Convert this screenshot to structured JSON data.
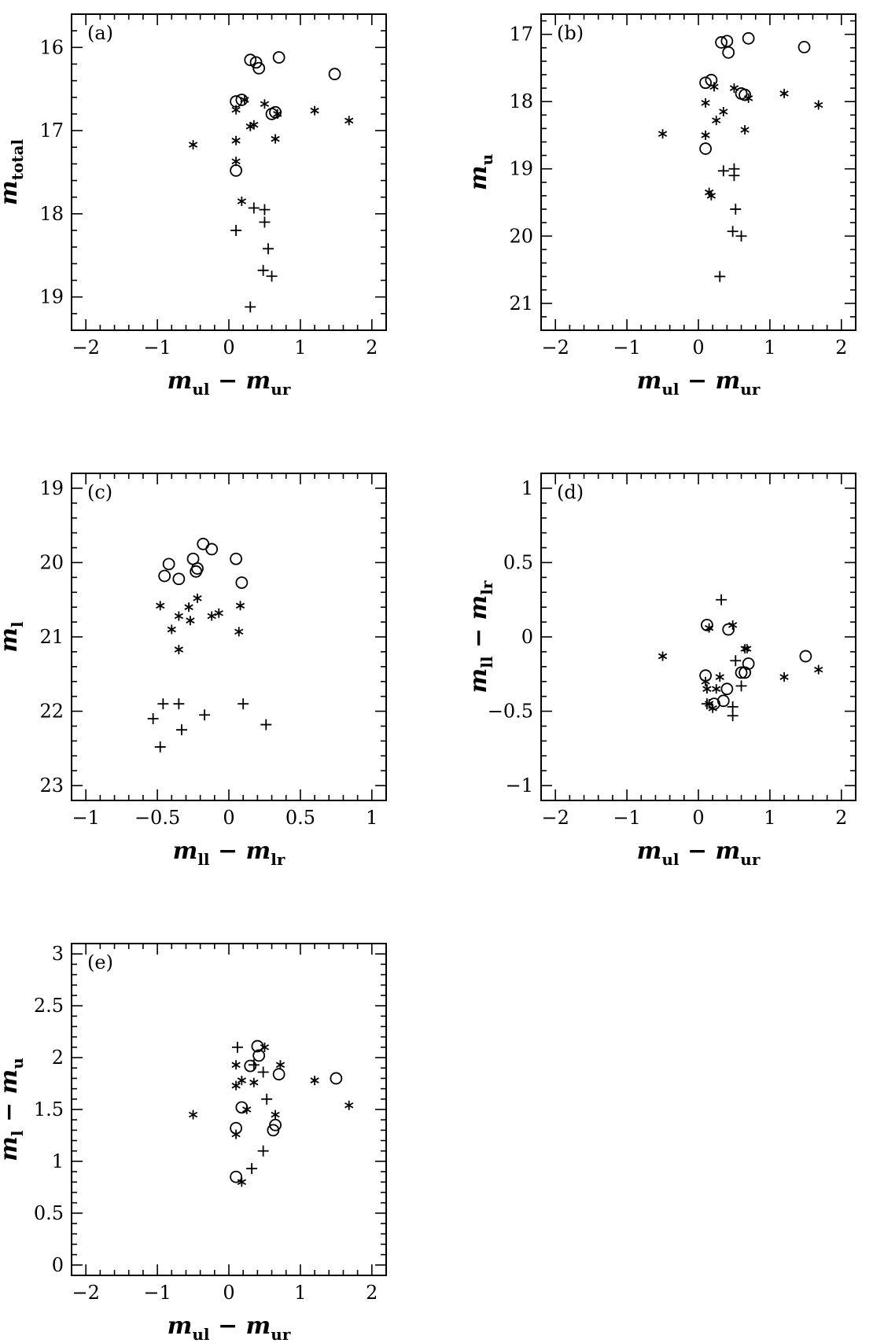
{
  "chart_data": [
    {
      "type": "scatter",
      "panel_label": "(a)",
      "xlabel": {
        "main": "m",
        "sub1": "ul",
        "op": "−",
        "main2": "m",
        "sub2": "ur"
      },
      "ylabel": {
        "main": "m",
        "sub1": "total"
      },
      "xlim": [
        -2.2,
        2.2
      ],
      "ylim": [
        19.4,
        15.6
      ],
      "xticks": [
        -2,
        -1,
        0,
        1,
        2
      ],
      "xtick_labels": [
        "−2",
        "−1",
        "0",
        "1",
        "2"
      ],
      "yticks": [
        16,
        17,
        18,
        19
      ],
      "ytick_labels": [
        "16",
        "17",
        "18",
        "19"
      ],
      "series": [
        {
          "marker": "circle",
          "points": [
            [
              0.3,
              16.15
            ],
            [
              0.38,
              16.18
            ],
            [
              0.42,
              16.25
            ],
            [
              0.7,
              16.12
            ],
            [
              1.48,
              16.32
            ],
            [
              0.1,
              16.65
            ],
            [
              0.18,
              16.63
            ],
            [
              0.6,
              16.8
            ],
            [
              0.65,
              16.78
            ],
            [
              0.1,
              17.48
            ]
          ]
        },
        {
          "marker": "star",
          "points": [
            [
              -0.5,
              17.17
            ],
            [
              0.1,
              16.75
            ],
            [
              0.22,
              16.63
            ],
            [
              0.3,
              16.95
            ],
            [
              0.35,
              16.93
            ],
            [
              0.5,
              16.68
            ],
            [
              0.68,
              16.8
            ],
            [
              1.2,
              16.76
            ],
            [
              1.68,
              16.88
            ],
            [
              0.1,
              17.12
            ],
            [
              0.1,
              17.37
            ],
            [
              0.65,
              17.1
            ],
            [
              0.18,
              17.85
            ]
          ]
        },
        {
          "marker": "plus",
          "points": [
            [
              0.35,
              17.93
            ],
            [
              0.5,
              17.95
            ],
            [
              0.5,
              18.1
            ],
            [
              0.1,
              18.2
            ],
            [
              0.55,
              18.42
            ],
            [
              0.48,
              18.68
            ],
            [
              0.6,
              18.75
            ],
            [
              0.3,
              19.12
            ]
          ]
        }
      ]
    },
    {
      "type": "scatter",
      "panel_label": "(b)",
      "xlabel": {
        "main": "m",
        "sub1": "ul",
        "op": "−",
        "main2": "m",
        "sub2": "ur"
      },
      "ylabel": {
        "main": "m",
        "sub1": "u"
      },
      "xlim": [
        -2.2,
        2.2
      ],
      "ylim": [
        21.4,
        16.7
      ],
      "xticks": [
        -2,
        -1,
        0,
        1,
        2
      ],
      "xtick_labels": [
        "−2",
        "−1",
        "0",
        "1",
        "2"
      ],
      "yticks": [
        17,
        18,
        19,
        20,
        21
      ],
      "ytick_labels": [
        "17",
        "18",
        "19",
        "20",
        "21"
      ],
      "series": [
        {
          "marker": "circle",
          "points": [
            [
              0.32,
              17.12
            ],
            [
              0.4,
              17.1
            ],
            [
              0.42,
              17.27
            ],
            [
              0.7,
              17.06
            ],
            [
              1.48,
              17.19
            ],
            [
              0.1,
              17.72
            ],
            [
              0.18,
              17.68
            ],
            [
              0.6,
              17.88
            ],
            [
              0.65,
              17.9
            ],
            [
              0.1,
              18.7
            ]
          ]
        },
        {
          "marker": "star",
          "points": [
            [
              -0.5,
              18.48
            ],
            [
              0.1,
              18.02
            ],
            [
              0.22,
              17.78
            ],
            [
              0.25,
              18.28
            ],
            [
              0.35,
              18.15
            ],
            [
              0.5,
              17.8
            ],
            [
              0.7,
              17.95
            ],
            [
              1.2,
              17.88
            ],
            [
              1.68,
              18.05
            ],
            [
              0.1,
              18.5
            ],
            [
              0.15,
              19.35
            ],
            [
              0.18,
              19.4
            ],
            [
              0.65,
              18.42
            ]
          ]
        },
        {
          "marker": "plus",
          "points": [
            [
              0.35,
              19.03
            ],
            [
              0.5,
              19.0
            ],
            [
              0.5,
              19.1
            ],
            [
              0.52,
              19.6
            ],
            [
              0.48,
              19.93
            ],
            [
              0.6,
              20.0
            ],
            [
              0.3,
              20.6
            ]
          ]
        }
      ]
    },
    {
      "type": "scatter",
      "panel_label": "(c)",
      "xlabel": {
        "main": "m",
        "sub1": "ll",
        "op": "−",
        "main2": "m",
        "sub2": "lr"
      },
      "ylabel": {
        "main": "m",
        "sub1": "l"
      },
      "xlim": [
        -1.1,
        1.1
      ],
      "ylim": [
        23.2,
        18.8
      ],
      "xticks": [
        -1,
        -0.5,
        0,
        0.5,
        1
      ],
      "xtick_labels": [
        "−1",
        "−0.5",
        "0",
        "0.5",
        "1"
      ],
      "yticks": [
        19,
        20,
        21,
        22,
        23
      ],
      "ytick_labels": [
        "19",
        "20",
        "21",
        "22",
        "23"
      ],
      "series": [
        {
          "marker": "circle",
          "points": [
            [
              -0.18,
              19.75
            ],
            [
              -0.12,
              19.82
            ],
            [
              -0.42,
              20.02
            ],
            [
              -0.45,
              20.18
            ],
            [
              -0.35,
              20.22
            ],
            [
              -0.25,
              19.95
            ],
            [
              -0.23,
              20.12
            ],
            [
              -0.22,
              20.08
            ],
            [
              0.05,
              19.95
            ],
            [
              0.09,
              20.27
            ]
          ]
        },
        {
          "marker": "star",
          "points": [
            [
              -0.48,
              20.58
            ],
            [
              -0.4,
              20.9
            ],
            [
              -0.35,
              20.72
            ],
            [
              -0.35,
              21.17
            ],
            [
              -0.28,
              20.6
            ],
            [
              -0.27,
              20.78
            ],
            [
              -0.22,
              20.48
            ],
            [
              -0.12,
              20.72
            ],
            [
              -0.07,
              20.68
            ],
            [
              0.08,
              20.58
            ],
            [
              0.07,
              20.93
            ]
          ]
        },
        {
          "marker": "plus",
          "points": [
            [
              -0.46,
              21.9
            ],
            [
              -0.35,
              21.9
            ],
            [
              -0.33,
              22.25
            ],
            [
              -0.17,
              22.05
            ],
            [
              0.1,
              21.9
            ],
            [
              -0.53,
              22.1
            ],
            [
              -0.48,
              22.48
            ],
            [
              0.26,
              22.18
            ]
          ]
        }
      ]
    },
    {
      "type": "scatter",
      "panel_label": "(d)",
      "xlabel": {
        "main": "m",
        "sub1": "ul",
        "op": "−",
        "main2": "m",
        "sub2": "ur"
      },
      "ylabel": {
        "main": "m",
        "sub1": "ll",
        "op": "−",
        "main2": "m",
        "sub2": "lr"
      },
      "xlim": [
        -2.2,
        2.2
      ],
      "ylim": [
        -1.1,
        1.1
      ],
      "xticks": [
        -2,
        -1,
        0,
        1,
        2
      ],
      "xtick_labels": [
        "−2",
        "−1",
        "0",
        "1",
        "2"
      ],
      "yticks": [
        -1,
        -0.5,
        0,
        0.5,
        1
      ],
      "ytick_labels": [
        "−1",
        "−0.5",
        "0",
        "0.5",
        "1"
      ],
      "series": [
        {
          "marker": "circle",
          "points": [
            [
              0.12,
              0.08
            ],
            [
              0.42,
              0.05
            ],
            [
              0.1,
              -0.26
            ],
            [
              0.4,
              -0.35
            ],
            [
              0.6,
              -0.24
            ],
            [
              0.65,
              -0.24
            ],
            [
              0.7,
              -0.18
            ],
            [
              1.5,
              -0.13
            ],
            [
              0.22,
              -0.45
            ],
            [
              0.35,
              -0.43
            ]
          ]
        },
        {
          "marker": "star",
          "points": [
            [
              -0.5,
              -0.13
            ],
            [
              0.15,
              0.06
            ],
            [
              0.48,
              0.08
            ],
            [
              0.1,
              -0.3
            ],
            [
              0.12,
              -0.35
            ],
            [
              0.25,
              -0.35
            ],
            [
              0.3,
              -0.27
            ],
            [
              0.15,
              -0.45
            ],
            [
              0.2,
              -0.48
            ],
            [
              0.65,
              -0.08
            ],
            [
              0.68,
              -0.08
            ],
            [
              1.2,
              -0.27
            ],
            [
              1.68,
              -0.22
            ]
          ]
        },
        {
          "marker": "plus",
          "points": [
            [
              0.32,
              0.25
            ],
            [
              0.52,
              -0.16
            ],
            [
              0.6,
              -0.33
            ],
            [
              0.48,
              -0.47
            ],
            [
              0.48,
              -0.53
            ],
            [
              0.12,
              -0.45
            ]
          ]
        }
      ]
    },
    {
      "type": "scatter",
      "panel_label": "(e)",
      "xlabel": {
        "main": "m",
        "sub1": "ul",
        "op": "−",
        "main2": "m",
        "sub2": "ur"
      },
      "ylabel": {
        "main": "m",
        "sub1": "l",
        "op": "−",
        "main2": "m",
        "sub2": "u"
      },
      "xlim": [
        -2.2,
        2.2
      ],
      "ylim": [
        -0.1,
        3.1
      ],
      "xticks": [
        -2,
        -1,
        0,
        1,
        2
      ],
      "xtick_labels": [
        "−2",
        "−1",
        "0",
        "1",
        "2"
      ],
      "yticks": [
        0,
        0.5,
        1,
        1.5,
        2,
        2.5,
        3
      ],
      "ytick_labels": [
        "0",
        "0.5",
        "1",
        "1.5",
        "2",
        "2.5",
        "3"
      ],
      "series": [
        {
          "marker": "circle",
          "points": [
            [
              0.4,
              2.11
            ],
            [
              0.42,
              2.02
            ],
            [
              0.3,
              1.92
            ],
            [
              0.7,
              1.84
            ],
            [
              1.5,
              1.8
            ],
            [
              0.18,
              1.52
            ],
            [
              0.1,
              1.32
            ],
            [
              0.62,
              1.3
            ],
            [
              0.65,
              1.35
            ],
            [
              0.1,
              0.85
            ]
          ]
        },
        {
          "marker": "star",
          "points": [
            [
              -0.5,
              1.45
            ],
            [
              0.1,
              1.93
            ],
            [
              0.1,
              1.73
            ],
            [
              0.18,
              1.78
            ],
            [
              0.25,
              1.5
            ],
            [
              0.35,
              1.76
            ],
            [
              0.5,
              2.1
            ],
            [
              0.72,
              1.93
            ],
            [
              1.2,
              1.78
            ],
            [
              1.68,
              1.54
            ],
            [
              0.65,
              1.45
            ],
            [
              0.1,
              1.26
            ],
            [
              0.18,
              0.8
            ]
          ]
        },
        {
          "marker": "plus",
          "points": [
            [
              0.12,
              2.1
            ],
            [
              0.35,
              1.93
            ],
            [
              0.48,
              1.86
            ],
            [
              0.53,
              1.6
            ],
            [
              0.48,
              1.1
            ],
            [
              0.32,
              0.93
            ]
          ]
        }
      ]
    }
  ]
}
